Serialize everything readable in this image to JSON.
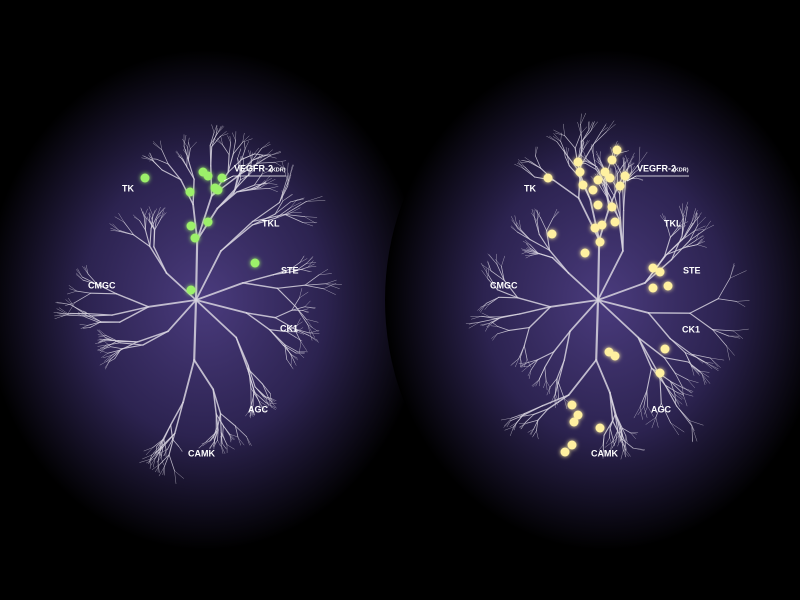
{
  "panels": [
    {
      "labels": {
        "tk": "TK",
        "tkl": "TKL",
        "ste": "STE",
        "cmgc": "CMGC",
        "ck1": "CK1",
        "agc": "AGC",
        "camk": "CAMK"
      },
      "callout": {
        "name": "VEGFR-2",
        "detail": "(KDR)"
      }
    },
    {
      "labels": {
        "tk": "TK",
        "tkl": "TKL",
        "ste": "STE",
        "cmgc": "CMGC",
        "ck1": "CK1",
        "agc": "AGC",
        "camk": "CAMK"
      },
      "callout": {
        "name": "VEGFR-2",
        "detail": "(KDR)"
      }
    }
  ]
}
